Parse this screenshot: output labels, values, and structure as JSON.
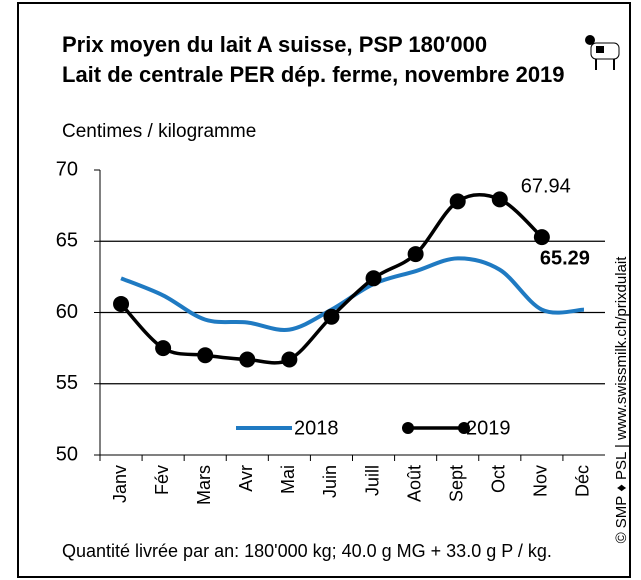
{
  "chart_data": {
    "type": "line",
    "title": "Prix moyen du lait A suisse, PSP 180′000",
    "subtitle": "Lait de centrale PER dép. ferme, novembre 2019",
    "y_label": "Centimes / kilogramme",
    "source": "© SMP ♦ PSL | www.swissmilk.ch/prixdulait",
    "footnote": "Quantité livrée par an: 180'000 kg; 40.0 g MG + 33.0 g P / kg.",
    "categories": [
      "Janv",
      "Fév",
      "Mars",
      "Avr",
      "Mai",
      "Juin",
      "Juill",
      "Août",
      "Sept",
      "Oct",
      "Nov",
      "Déc"
    ],
    "series": [
      {
        "name": "2018",
        "color": "#1f7ac2",
        "values": [
          62.4,
          61.2,
          59.5,
          59.3,
          58.8,
          60.2,
          62.0,
          62.9,
          63.8,
          63.0,
          60.2,
          60.2
        ]
      },
      {
        "name": "2019",
        "color": "#000000",
        "values": [
          60.6,
          57.5,
          57.0,
          56.7,
          56.7,
          59.7,
          62.4,
          64.1,
          67.8,
          67.94,
          65.29,
          null
        ]
      }
    ],
    "ylim": [
      50,
      70
    ],
    "yticks": [
      50,
      55,
      60,
      65,
      70
    ],
    "grid": true
  }
}
